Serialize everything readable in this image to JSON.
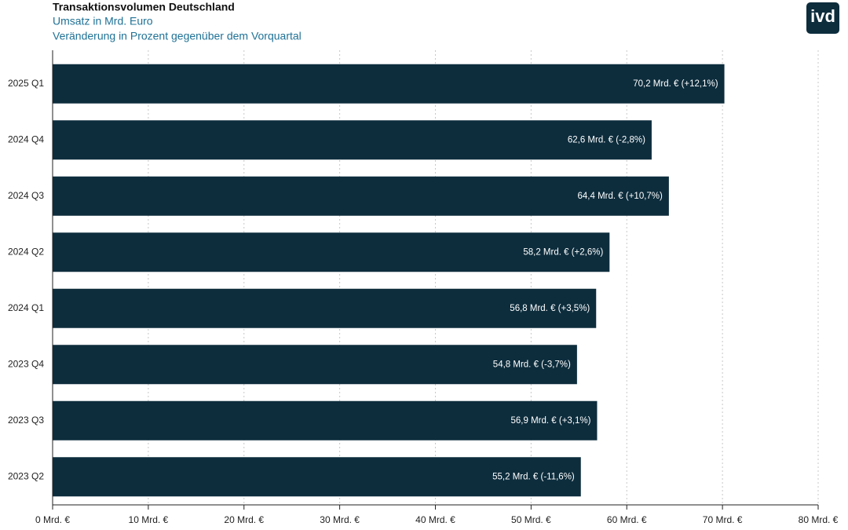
{
  "chart_data": {
    "type": "barh",
    "title": "Transaktionsvolumen Deutschland",
    "subtitle": "Umsatz in Mrd. Euro",
    "subtitle2": "Veränderung in Prozent gegenüber dem Vorquartal",
    "logo": "ivd",
    "categories": [
      "2025 Q1",
      "2024 Q4",
      "2024 Q3",
      "2024 Q2",
      "2024 Q1",
      "2023 Q4",
      "2023 Q3",
      "2023 Q2"
    ],
    "values": [
      70.2,
      62.6,
      64.4,
      58.2,
      56.8,
      54.8,
      56.9,
      55.2
    ],
    "value_labels": [
      "70,2 Mrd. € (+12,1%)",
      "62,6 Mrd. € (-2,8%)",
      "64,4 Mrd. € (+10,7%)",
      "58,2 Mrd. € (+2,6%)",
      "56,8 Mrd. € (+3,5%)",
      "54,8 Mrd. € (-3,7%)",
      "56,9 Mrd. € (+3,1%)",
      "55,2 Mrd. € (-11,6%)"
    ],
    "color": "#0d2d3d",
    "xlim": [
      0,
      80
    ],
    "xticks": [
      {
        "value": 0,
        "label": "0 Mrd. €"
      },
      {
        "value": 10,
        "label": "10 Mrd. €"
      },
      {
        "value": 20,
        "label": "20 Mrd. €"
      },
      {
        "value": 30,
        "label": "30 Mrd. €"
      },
      {
        "value": 40,
        "label": "40 Mrd. €"
      },
      {
        "value": 50,
        "label": "50 Mrd. €"
      },
      {
        "value": 60,
        "label": "60 Mrd. €"
      },
      {
        "value": 70,
        "label": "70 Mrd. €"
      },
      {
        "value": 80,
        "label": "80 Mrd. €"
      }
    ],
    "grid": true
  }
}
